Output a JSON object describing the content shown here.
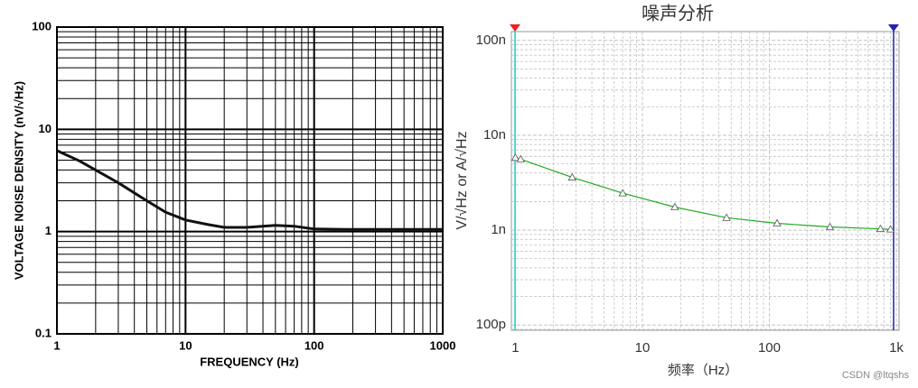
{
  "chart_data": [
    {
      "type": "line",
      "xlabel": "FREQUENCY (Hz)",
      "ylabel": "VOLTAGE NOISE DENSITY (nV/√Hz)",
      "x": [
        1,
        1.5,
        2,
        3,
        5,
        7,
        10,
        15,
        20,
        30,
        50,
        70,
        100,
        200,
        500,
        1000
      ],
      "series": [
        {
          "color": "#111111",
          "values": [
            6.2,
            4.9,
            4.0,
            3.0,
            2.0,
            1.55,
            1.3,
            1.17,
            1.1,
            1.1,
            1.15,
            1.13,
            1.06,
            1.05,
            1.05,
            1.05
          ]
        }
      ],
      "xlim": [
        1,
        1000
      ],
      "ylim": [
        0.1,
        100
      ],
      "xticks": [
        1,
        10,
        100,
        1000
      ],
      "yticks": [
        0.1,
        1,
        10,
        100
      ],
      "log_x": true,
      "log_y": true,
      "grid": "solid",
      "minor_grid": true
    },
    {
      "type": "line",
      "title": "噪声分析",
      "xlabel": "频率（Hz）",
      "ylabel": "V/√Hz or A/√Hz",
      "x": [
        1,
        1.1,
        2.8,
        7,
        18,
        46,
        115,
        300,
        750,
        900
      ],
      "series": [
        {
          "color": "#22aa22",
          "marker": "triangle",
          "values": [
            5.8e-09,
            5.6e-09,
            3.6e-09,
            2.45e-09,
            1.75e-09,
            1.35e-09,
            1.18e-09,
            1.08e-09,
            1.03e-09,
            1.02e-09
          ]
        }
      ],
      "xlim": [
        0.93,
        1050
      ],
      "ylim": [
        8.8e-11,
        1.24e-07
      ],
      "xticks": [
        1,
        10,
        100,
        {
          "value": 1000,
          "label": "1k"
        }
      ],
      "yticks": [
        {
          "value": 1e-10,
          "label": "100p"
        },
        {
          "value": 1e-09,
          "label": "1n"
        },
        {
          "value": 1e-08,
          "label": "10n"
        },
        {
          "value": 1e-07,
          "label": "100n"
        }
      ],
      "log_x": true,
      "log_y": true,
      "grid": "dashed",
      "minor_grid": true
    }
  ],
  "watermark": "CSDN @ltqshs"
}
